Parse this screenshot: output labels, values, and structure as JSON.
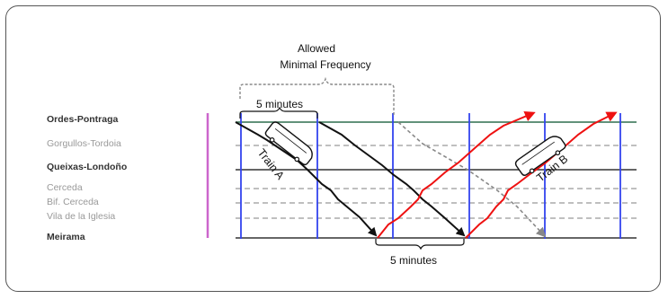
{
  "stations": [
    {
      "name": "Ordes-Pontraga",
      "major": true
    },
    {
      "name": "Gorgullos-Tordoia",
      "major": false
    },
    {
      "name": "Queixas-Londoño",
      "major": true
    },
    {
      "name": "Cerceda",
      "major": false
    },
    {
      "name": "Bif. Cerceda",
      "major": false
    },
    {
      "name": "Vila de la Iglesia",
      "major": false
    },
    {
      "name": "Meirama",
      "major": true
    }
  ],
  "annotations": {
    "allowed_line1": "Allowed",
    "allowed_line2": "Minimal Frequency",
    "top_interval": "5 minutes",
    "bottom_interval": "5 minutes"
  },
  "trains": {
    "a": {
      "label": "Train A",
      "color": "#111111"
    },
    "b": {
      "label": "Train B",
      "color": "#ee1111"
    }
  },
  "colors": {
    "grid_vertical": "#3344ee",
    "grid_horizontal": "#333333",
    "grid_dashed": "#999999",
    "left_bar": "#cc66cc",
    "ghost_arrow": "#888888",
    "frame": "#555555"
  }
}
